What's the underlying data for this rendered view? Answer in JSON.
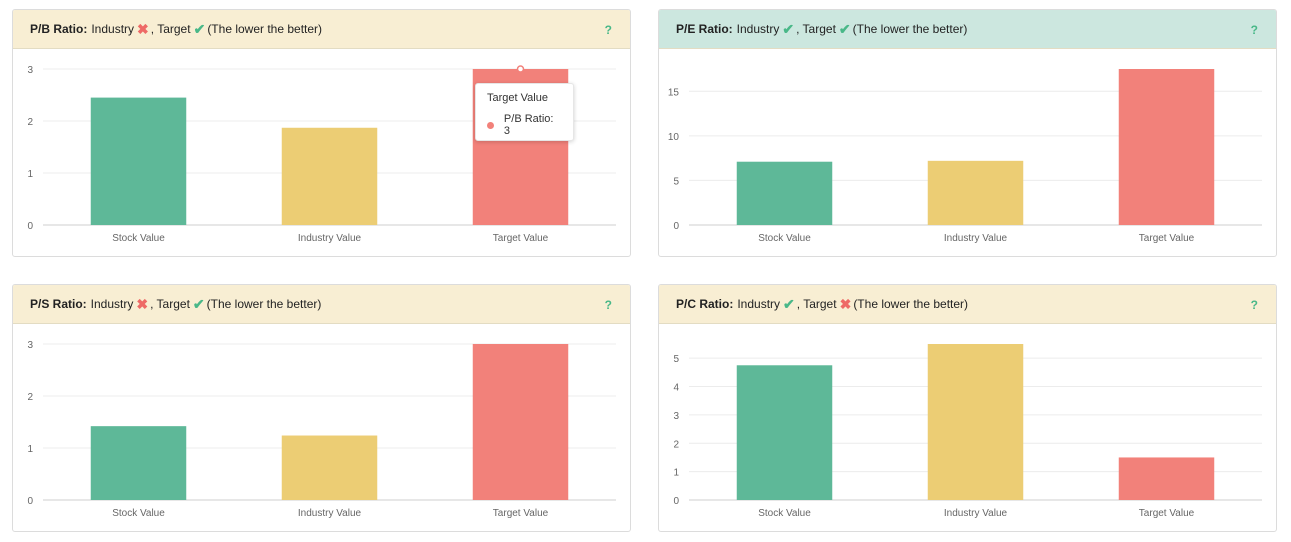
{
  "colors": {
    "green": "#5eb898",
    "yellow": "#eccd74",
    "red": "#f2817a",
    "header_yellow": "#f8eed3",
    "header_green": "#cce7df",
    "check": "#49b888",
    "cross": "#ee6a66",
    "help": "#49b888"
  },
  "panels": [
    {
      "label": "P/B Ratio:",
      "industry_text": "Industry",
      "industry_mark": "cross",
      "target_text": ", Target",
      "target_mark": "check",
      "suffix": "(The lower the better)",
      "help": "?",
      "header_color": "header_yellow",
      "tooltip": {
        "title": "Target Value",
        "label": "P/B Ratio: 3"
      }
    },
    {
      "label": "P/E Ratio:",
      "industry_text": "Industry",
      "industry_mark": "check",
      "target_text": ", Target",
      "target_mark": "check",
      "suffix": "(The lower the better)",
      "help": "?",
      "header_color": "header_green"
    },
    {
      "label": "P/S Ratio:",
      "industry_text": "Industry",
      "industry_mark": "cross",
      "target_text": ", Target",
      "target_mark": "check",
      "suffix": "(The lower the better)",
      "help": "?",
      "header_color": "header_yellow"
    },
    {
      "label": "P/C Ratio:",
      "industry_text": "Industry",
      "industry_mark": "check",
      "target_text": ", Target",
      "target_mark": "cross",
      "suffix": "(The lower the better)",
      "help": "?",
      "header_color": "header_yellow"
    }
  ],
  "chart_data": [
    {
      "type": "bar",
      "title": "P/B Ratio",
      "categories": [
        "Stock Value",
        "Industry Value",
        "Target Value"
      ],
      "values": [
        2.45,
        1.87,
        3
      ],
      "ylim": [
        0,
        3
      ],
      "yticks": [
        0,
        1,
        2,
        3
      ],
      "grid": true
    },
    {
      "type": "bar",
      "title": "P/E Ratio",
      "categories": [
        "Stock Value",
        "Industry Value",
        "Target Value"
      ],
      "values": [
        7.1,
        7.2,
        17.5
      ],
      "ylim": [
        0,
        17.5
      ],
      "yticks": [
        0,
        5,
        10,
        15
      ],
      "grid": true
    },
    {
      "type": "bar",
      "title": "P/S Ratio",
      "categories": [
        "Stock Value",
        "Industry Value",
        "Target Value"
      ],
      "values": [
        1.42,
        1.24,
        3
      ],
      "ylim": [
        0,
        3
      ],
      "yticks": [
        0,
        1,
        2,
        3
      ],
      "grid": true
    },
    {
      "type": "bar",
      "title": "P/C Ratio",
      "categories": [
        "Stock Value",
        "Industry Value",
        "Target Value"
      ],
      "values": [
        4.75,
        5.5,
        1.5
      ],
      "ylim": [
        0,
        5.5
      ],
      "yticks": [
        0,
        1,
        2,
        3,
        4,
        5
      ],
      "grid": true
    }
  ]
}
